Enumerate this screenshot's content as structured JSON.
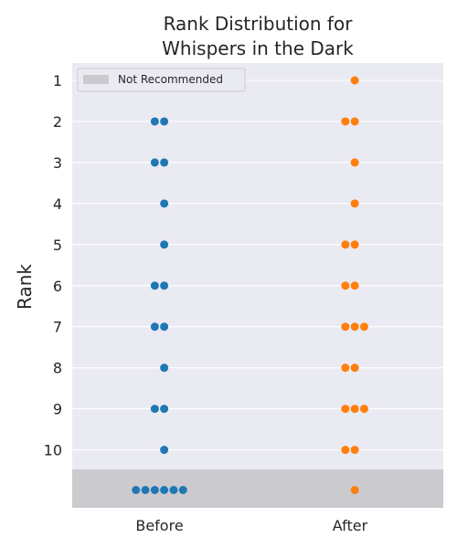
{
  "chart_data": {
    "type": "scatter",
    "style": "swarm",
    "title_lines": [
      "Rank Distribution for",
      "Whispers in the Dark"
    ],
    "xlabel": "",
    "ylabel": "Rank",
    "categories": [
      "Before",
      "After"
    ],
    "y_ticks": [
      "1",
      "2",
      "3",
      "4",
      "5",
      "6",
      "7",
      "8",
      "9",
      "10"
    ],
    "y_order": "1 at top, 10 below, unranked row at bottom",
    "legend": {
      "placement": "top-left",
      "label": "Not Recommended",
      "swatch_color": "#cbcace"
    },
    "grid": true,
    "colors": {
      "background": "#eaeaf2",
      "grid": "#ffffff",
      "not_recommended_band": "#cbcace"
    },
    "series": [
      {
        "category": "Before",
        "color": "#1f77b4",
        "counts_by_rank": {
          "1": 0,
          "2": 2,
          "3": 2,
          "4": 1,
          "5": 1,
          "6": 2,
          "7": 2,
          "8": 1,
          "9": 2,
          "10": 1,
          "not_recommended": 6
        }
      },
      {
        "category": "After",
        "color": "#ff7f0e",
        "counts_by_rank": {
          "1": 1,
          "2": 2,
          "3": 1,
          "4": 1,
          "5": 2,
          "6": 2,
          "7": 3,
          "8": 2,
          "9": 3,
          "10": 2,
          "not_recommended": 1
        }
      }
    ]
  }
}
